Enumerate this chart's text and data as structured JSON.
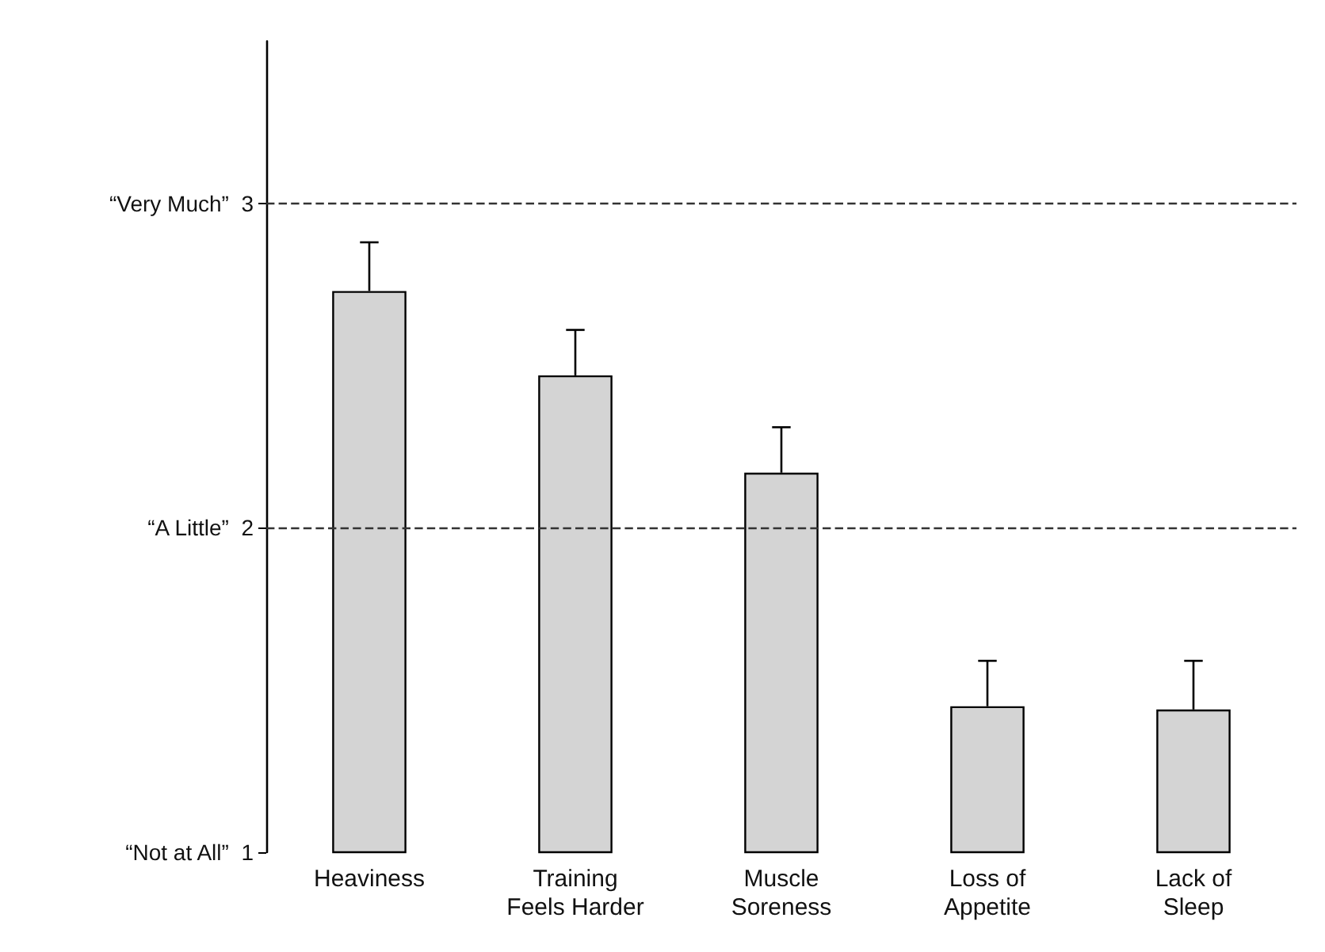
{
  "chart_data": {
    "type": "bar",
    "categories": [
      "Heaviness",
      "Training\nFeels Harder",
      "Muscle\nSoreness",
      "Loss of\nAppetite",
      "Lack of\nSleep"
    ],
    "values": [
      2.73,
      2.47,
      2.17,
      1.45,
      1.44
    ],
    "errors": [
      [
        2.73,
        2.88
      ],
      [
        2.47,
        2.61
      ],
      [
        2.17,
        2.31
      ],
      [
        1.45,
        1.59
      ],
      [
        1.44,
        1.59
      ]
    ],
    "color": "#d4d4d4",
    "ylim": [
      1,
      3.5
    ],
    "yticks": [
      {
        "value": 1,
        "label": "“Not at All”  1"
      },
      {
        "value": 2,
        "label": "“A Little”  2"
      },
      {
        "value": 3,
        "label": "“Very Much”  3"
      }
    ],
    "ref_lines": [
      {
        "axis": "y",
        "value": 2,
        "label": null,
        "line_style": "dashed",
        "color": "#333333"
      },
      {
        "axis": "y",
        "value": 3,
        "label": null,
        "line_style": "dashed",
        "color": "#333333"
      }
    ],
    "grid": false
  }
}
